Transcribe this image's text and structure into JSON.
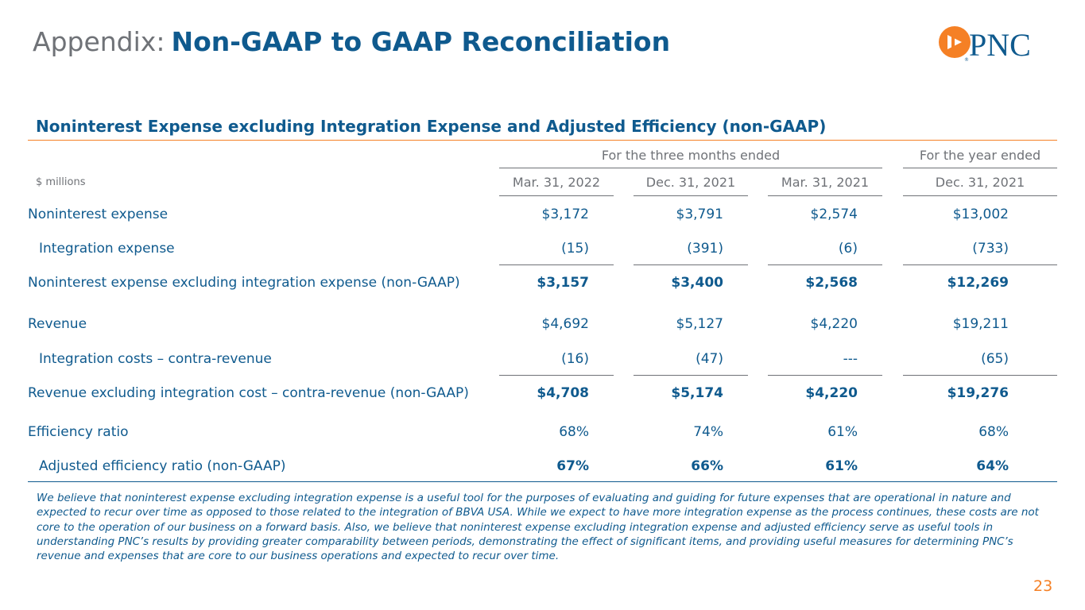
{
  "header": {
    "title_prefix": "Appendix:",
    "title_main": "Non-GAAP to GAAP Reconciliation",
    "logo_text": "PNC"
  },
  "section": {
    "title": "Noninterest Expense excluding Integration Expense and Adjusted Efficiency (non-GAAP)"
  },
  "table": {
    "units_label": "$ millions",
    "group_headers": {
      "quarter": "For the three months ended",
      "year": "For the year ended"
    },
    "columns": [
      "Mar. 31, 2022",
      "Dec. 31, 2021",
      "Mar. 31, 2021",
      "Dec. 31, 2021"
    ],
    "rows": [
      {
        "label": "Noninterest expense",
        "values": [
          "$3,172",
          "$3,791",
          "$2,574",
          "$13,002"
        ]
      },
      {
        "label": "Integration expense",
        "values": [
          "(15)",
          "(391)",
          "(6)",
          "(733)"
        ]
      },
      {
        "label": "Noninterest expense excluding integration expense (non-GAAP)",
        "values": [
          "$3,157",
          "$3,400",
          "$2,568",
          "$12,269"
        ]
      },
      {
        "label": "Revenue",
        "values": [
          "$4,692",
          "$5,127",
          "$4,220",
          "$19,211"
        ]
      },
      {
        "label": "Integration costs – contra-revenue",
        "values": [
          "(16)",
          "(47)",
          "---",
          "(65)"
        ]
      },
      {
        "label": "Revenue excluding integration cost – contra-revenue (non-GAAP)",
        "values": [
          "$4,708",
          "$5,174",
          "$4,220",
          "$19,276"
        ]
      },
      {
        "label": "Efficiency ratio",
        "values": [
          "68%",
          "74%",
          "61%",
          "68%"
        ]
      },
      {
        "label": "Adjusted efficiency ratio (non-GAAP)",
        "values": [
          "67%",
          "66%",
          "61%",
          "64%"
        ]
      }
    ]
  },
  "footnote": "We believe that noninterest expense excluding integration expense is a useful tool for the purposes of evaluating and guiding for future expenses that are operational in nature and expected to recur over time as opposed to those related to the integration of BBVA USA. While we expect to have more integration expense as the process continues, these costs are not core to the operation of our business on a forward basis. Also, we believe that noninterest expense excluding integration expense and adjusted efficiency serve as useful tools in understanding PNC’s results by providing greater comparability between periods, demonstrating the effect of significant items, and providing useful measures for determining PNC’s revenue and expenses that are core to our business operations and expected to recur over time.",
  "page_number": "23",
  "colors": {
    "brand_blue": "#0f5a8e",
    "brand_orange": "#f58025",
    "gray": "#6f7277"
  }
}
